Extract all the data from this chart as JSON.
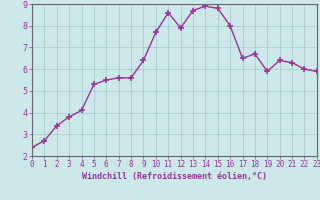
{
  "x": [
    0,
    1,
    2,
    3,
    4,
    5,
    6,
    7,
    8,
    9,
    10,
    11,
    12,
    13,
    14,
    15,
    16,
    17,
    18,
    19,
    20,
    21,
    22,
    23
  ],
  "y": [
    2.4,
    2.7,
    3.4,
    3.8,
    4.1,
    5.3,
    5.5,
    5.6,
    5.6,
    6.4,
    7.7,
    8.6,
    7.9,
    8.7,
    8.9,
    8.8,
    8.0,
    6.5,
    6.7,
    5.9,
    6.4,
    6.3,
    6.0,
    5.9
  ],
  "line_color": "#993399",
  "marker": "+",
  "marker_size": 4,
  "marker_lw": 1.2,
  "line_width": 1.0,
  "bg_color": "#cce8e8",
  "grid_color": "#aacccc",
  "xlabel": "Windchill (Refroidissement éolien,°C)",
  "xlim": [
    0,
    23
  ],
  "ylim": [
    2,
    9
  ],
  "yticks": [
    2,
    3,
    4,
    5,
    6,
    7,
    8,
    9
  ],
  "xticks": [
    0,
    1,
    2,
    3,
    4,
    5,
    6,
    7,
    8,
    9,
    10,
    11,
    12,
    13,
    14,
    15,
    16,
    17,
    18,
    19,
    20,
    21,
    22,
    23
  ],
  "tick_color": "#993399",
  "label_color": "#993399",
  "spine_color": "#666666",
  "tick_fontsize": 5.5,
  "xlabel_fontsize": 6.0
}
